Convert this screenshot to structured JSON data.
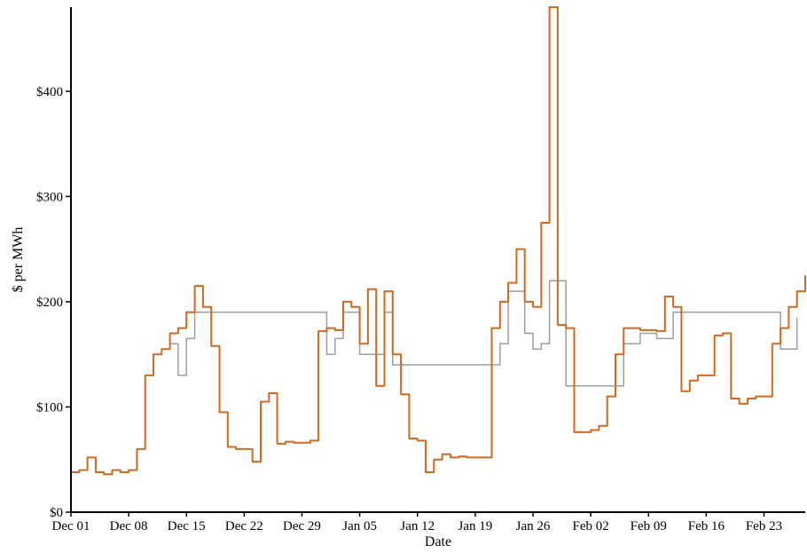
{
  "chart_data": {
    "type": "line",
    "title": "",
    "xlabel": "Date",
    "ylabel": "$ per MWh",
    "grid": false,
    "legend": "none",
    "xlim": [
      "Dec 01",
      "Feb 28"
    ],
    "ylim": [
      0,
      480
    ],
    "x_ticks": [
      "Dec 01",
      "Dec 08",
      "Dec 15",
      "Dec 22",
      "Dec 29",
      "Jan 05",
      "Jan 12",
      "Jan 19",
      "Jan 26",
      "Feb 02",
      "Feb 09",
      "Feb 16",
      "Feb 23"
    ],
    "y_ticks": [
      {
        "value": 0,
        "label": "$0"
      },
      {
        "value": 100,
        "label": "$100"
      },
      {
        "value": 200,
        "label": "$200"
      },
      {
        "value": 300,
        "label": "$300"
      },
      {
        "value": 400,
        "label": "$400"
      }
    ],
    "series": [
      {
        "color": "#D2691E",
        "points": [
          [
            "Dec 01",
            38
          ],
          [
            "Dec 02",
            40
          ],
          [
            "Dec 03",
            52
          ],
          [
            "Dec 04",
            38
          ],
          [
            "Dec 05",
            36
          ],
          [
            "Dec 06",
            40
          ],
          [
            "Dec 07",
            38
          ],
          [
            "Dec 08",
            40
          ],
          [
            "Dec 09",
            60
          ],
          [
            "Dec 10",
            130
          ],
          [
            "Dec 11",
            150
          ],
          [
            "Dec 12",
            155
          ],
          [
            "Dec 13",
            170
          ],
          [
            "Dec 14",
            175
          ],
          [
            "Dec 15",
            190
          ],
          [
            "Dec 16",
            215
          ],
          [
            "Dec 17",
            195
          ],
          [
            "Dec 18",
            158
          ],
          [
            "Dec 19",
            95
          ],
          [
            "Dec 20",
            62
          ],
          [
            "Dec 21",
            60
          ],
          [
            "Dec 22",
            60
          ],
          [
            "Dec 23",
            48
          ],
          [
            "Dec 24",
            105
          ],
          [
            "Dec 25",
            113
          ],
          [
            "Dec 26",
            65
          ],
          [
            "Dec 27",
            67
          ],
          [
            "Dec 28",
            66
          ],
          [
            "Dec 29",
            66
          ],
          [
            "Dec 30",
            68
          ],
          [
            "Dec 31",
            172
          ],
          [
            "Jan 01",
            175
          ],
          [
            "Jan 02",
            173
          ],
          [
            "Jan 03",
            200
          ],
          [
            "Jan 04",
            195
          ],
          [
            "Jan 05",
            160
          ],
          [
            "Jan 06",
            212
          ],
          [
            "Jan 07",
            120
          ],
          [
            "Jan 08",
            210
          ],
          [
            "Jan 09",
            150
          ],
          [
            "Jan 10",
            112
          ],
          [
            "Jan 11",
            70
          ],
          [
            "Jan 12",
            68
          ],
          [
            "Jan 13",
            38
          ],
          [
            "Jan 14",
            50
          ],
          [
            "Jan 15",
            55
          ],
          [
            "Jan 16",
            52
          ],
          [
            "Jan 17",
            53
          ],
          [
            "Jan 18",
            52
          ],
          [
            "Jan 19",
            52
          ],
          [
            "Jan 20",
            52
          ],
          [
            "Jan 21",
            175
          ],
          [
            "Jan 22",
            200
          ],
          [
            "Jan 23",
            218
          ],
          [
            "Jan 24",
            250
          ],
          [
            "Jan 25",
            200
          ],
          [
            "Jan 26",
            195
          ],
          [
            "Jan 27",
            275
          ],
          [
            "Jan 28",
            480
          ],
          [
            "Jan 29",
            178
          ],
          [
            "Jan 30",
            175
          ],
          [
            "Jan 31",
            76
          ],
          [
            "Feb 01",
            76
          ],
          [
            "Feb 02",
            78
          ],
          [
            "Feb 03",
            82
          ],
          [
            "Feb 04",
            110
          ],
          [
            "Feb 05",
            150
          ],
          [
            "Feb 06",
            175
          ],
          [
            "Feb 07",
            175
          ],
          [
            "Feb 08",
            173
          ],
          [
            "Feb 09",
            173
          ],
          [
            "Feb 10",
            172
          ],
          [
            "Feb 11",
            205
          ],
          [
            "Feb 12",
            195
          ],
          [
            "Feb 13",
            115
          ],
          [
            "Feb 14",
            125
          ],
          [
            "Feb 15",
            130
          ],
          [
            "Feb 16",
            130
          ],
          [
            "Feb 17",
            168
          ],
          [
            "Feb 18",
            170
          ],
          [
            "Feb 19",
            108
          ],
          [
            "Feb 20",
            103
          ],
          [
            "Feb 21",
            108
          ],
          [
            "Feb 22",
            110
          ],
          [
            "Feb 23",
            110
          ],
          [
            "Feb 24",
            160
          ],
          [
            "Feb 25",
            175
          ],
          [
            "Feb 26",
            195
          ],
          [
            "Feb 27",
            210
          ],
          [
            "Feb 28",
            225
          ]
        ]
      },
      {
        "color": "#9E9E9E",
        "points": [
          [
            "Dec 13",
            160
          ],
          [
            "Dec 14",
            130
          ],
          [
            "Dec 15",
            165
          ],
          [
            "Dec 16",
            190
          ],
          [
            "Jan 01",
            150
          ],
          [
            "Jan 02",
            165
          ],
          [
            "Jan 03",
            190
          ],
          [
            "Jan 05",
            150
          ],
          [
            "Jan 08",
            190
          ],
          [
            "Jan 09",
            140
          ],
          [
            "Jan 22",
            160
          ],
          [
            "Jan 23",
            210
          ],
          [
            "Jan 25",
            170
          ],
          [
            "Jan 26",
            155
          ],
          [
            "Jan 27",
            160
          ],
          [
            "Jan 28",
            220
          ],
          [
            "Jan 30",
            120
          ],
          [
            "Feb 06",
            160
          ],
          [
            "Feb 08",
            170
          ],
          [
            "Feb 10",
            165
          ],
          [
            "Feb 12",
            190
          ],
          [
            "Feb 25",
            155
          ],
          [
            "Feb 27",
            185
          ]
        ]
      }
    ]
  }
}
